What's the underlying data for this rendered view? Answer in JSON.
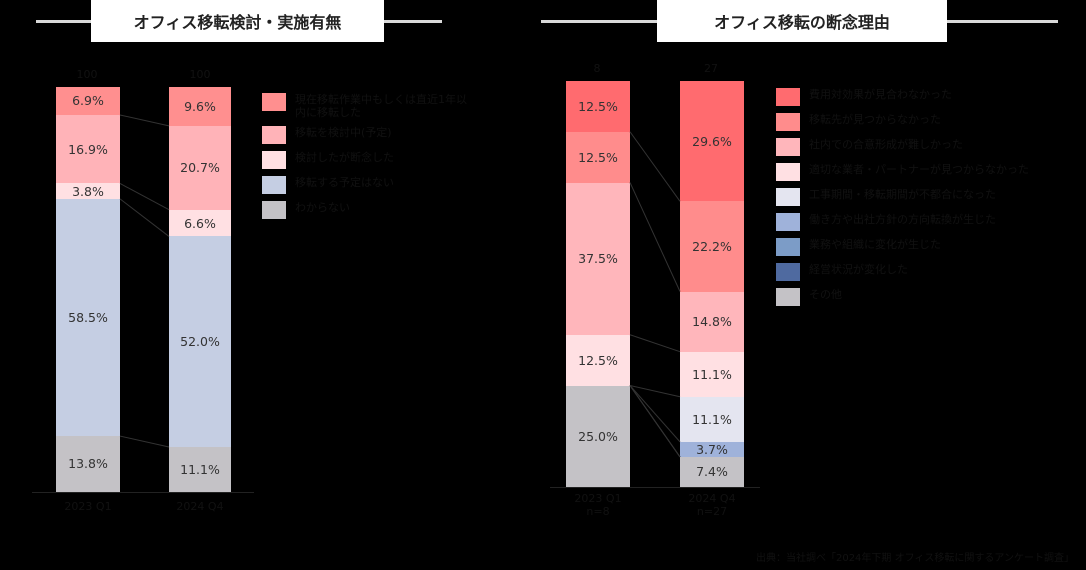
{
  "left": {
    "title": "オフィス移転検討・実施有無",
    "n_labels": [
      "100",
      "100"
    ],
    "x_labels": [
      "2023 Q1",
      "2024 Q4"
    ],
    "legend": [
      {
        "label": "現在移転作業中もしくは直近1年以内に移転した",
        "color": "#ff8f8f"
      },
      {
        "label": "移転を検討中(予定)",
        "color": "#ffb3b8"
      },
      {
        "label": "検討したが断念した",
        "color": "#ffe0e3"
      },
      {
        "label": "移転する予定はない",
        "color": "#c5cee3"
      },
      {
        "label": "わからない",
        "color": "#c4c2c6"
      }
    ]
  },
  "right": {
    "title": "オフィス移転の断念理由",
    "n_labels": [
      "8",
      "27"
    ],
    "x_labels": [
      "2023 Q1",
      "2024 Q4"
    ],
    "x_sublabels": [
      "n=8",
      "n=27"
    ],
    "legend": [
      {
        "label": "費用対効果が見合わなかった",
        "color": "#ff6b6f"
      },
      {
        "label": "移転先が見つからなかった",
        "color": "#ff8c8c"
      },
      {
        "label": "社内での合意形成が難しかった",
        "color": "#ffb6bb"
      },
      {
        "label": "適切な業者・パートナーが見つからなかった",
        "color": "#ffe0e3"
      },
      {
        "label": "工事期間・移転期間が不都合になった",
        "color": "#e4e5f0"
      },
      {
        "label": "働き方や出社方針の方向転換が生じた",
        "color": "#9fb2da"
      },
      {
        "label": "業務や組織に変化が生じた",
        "color": "#7c9cc7"
      },
      {
        "label": "経営状況が変化した",
        "color": "#4f6aa0"
      },
      {
        "label": "その他",
        "color": "#c4c2c6"
      }
    ]
  },
  "source": "出典：当社調べ「2024年下期 オフィス移転に関するアンケート調査」",
  "chart_data": [
    {
      "type": "bar",
      "stacked": true,
      "title": "オフィス移転検討・実施有無",
      "categories": [
        "2023 Q1",
        "2024 Q4"
      ],
      "n": [
        100,
        100
      ],
      "series": [
        {
          "name": "現在移転作業中もしくは直近1年以内に移転した",
          "values": [
            6.9,
            9.6
          ]
        },
        {
          "name": "移転を検討中(予定)",
          "values": [
            16.9,
            20.7
          ]
        },
        {
          "name": "検討したが断念した",
          "values": [
            3.8,
            6.6
          ]
        },
        {
          "name": "移転する予定はない",
          "values": [
            58.5,
            52.0
          ]
        },
        {
          "name": "わからない",
          "values": [
            13.8,
            11.1
          ]
        }
      ],
      "ylim": [
        0,
        100
      ],
      "legend_position": "right",
      "grid": false
    },
    {
      "type": "bar",
      "stacked": true,
      "title": "オフィス移転の断念理由",
      "categories": [
        "2023 Q1",
        "2024 Q4"
      ],
      "n": [
        8,
        27
      ],
      "series": [
        {
          "name": "費用対効果が見合わなかった",
          "values": [
            12.5,
            29.6
          ]
        },
        {
          "name": "移転先が見つからなかった",
          "values": [
            12.5,
            22.2
          ]
        },
        {
          "name": "社内での合意形成が難しかった",
          "values": [
            37.5,
            14.8
          ]
        },
        {
          "name": "適切な業者・パートナーが見つからなかった",
          "values": [
            12.5,
            11.1
          ]
        },
        {
          "name": "工事期間・移転期間が不都合になった",
          "values": [
            0,
            11.1
          ]
        },
        {
          "name": "働き方や出社方針の方向転換が生じた",
          "values": [
            0,
            3.7
          ]
        },
        {
          "name": "業務や組織に変化が生じた",
          "values": [
            0,
            0
          ]
        },
        {
          "name": "経営状況が変化した",
          "values": [
            0,
            0
          ]
        },
        {
          "name": "その他",
          "values": [
            25.0,
            7.4
          ]
        }
      ],
      "ylim": [
        0,
        100
      ],
      "legend_position": "right",
      "grid": false
    }
  ]
}
